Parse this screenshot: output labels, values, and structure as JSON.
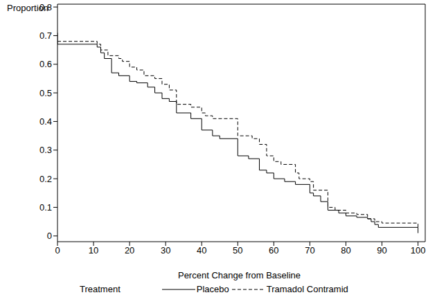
{
  "chart_data": {
    "type": "line",
    "title": "",
    "x_label": "Percent Change from Baseline",
    "y_label": "Proportion",
    "legend_title": "Treatment",
    "legend": "bottom",
    "xlim": [
      0,
      102
    ],
    "xticks": [
      0,
      10,
      20,
      30,
      40,
      50,
      60,
      70,
      80,
      90,
      100
    ],
    "ylim": [
      -0.02,
      0.81
    ],
    "yticks": [
      0,
      0.1,
      0.2,
      0.3,
      0.4,
      0.5,
      0.6,
      0.7,
      0.8
    ],
    "grid": false,
    "series": [
      {
        "name": "Placebo",
        "color": "#000000",
        "line_style": "solid",
        "x": [
          0,
          0,
          10,
          11,
          12,
          13,
          15,
          17,
          20,
          22,
          25,
          27,
          29,
          31,
          33,
          37,
          40,
          43,
          45,
          50,
          53,
          56,
          58,
          60,
          63,
          66,
          70,
          71,
          73,
          75,
          78,
          80,
          83,
          86,
          87,
          88,
          89,
          100,
          100
        ],
        "values": [
          0.71,
          0.67,
          0.67,
          0.66,
          0.64,
          0.62,
          0.57,
          0.56,
          0.54,
          0.535,
          0.52,
          0.5,
          0.48,
          0.47,
          0.43,
          0.41,
          0.37,
          0.35,
          0.34,
          0.28,
          0.27,
          0.23,
          0.22,
          0.2,
          0.19,
          0.18,
          0.15,
          0.14,
          0.12,
          0.09,
          0.08,
          0.07,
          0.065,
          0.06,
          0.05,
          0.04,
          0.03,
          0.03,
          0.01
        ]
      },
      {
        "name": "Tramadol Contramid",
        "color": "#000000",
        "line_style": "dashed",
        "x": [
          0,
          10,
          11,
          12,
          14,
          17,
          18,
          20,
          22,
          24,
          27,
          29,
          31,
          33,
          37,
          40,
          41,
          43,
          50,
          54,
          56,
          58,
          60,
          62,
          66,
          67,
          70,
          71,
          75,
          77,
          80,
          83,
          86,
          88,
          90,
          100,
          100
        ],
        "values": [
          0.68,
          0.68,
          0.67,
          0.65,
          0.63,
          0.62,
          0.61,
          0.59,
          0.58,
          0.56,
          0.55,
          0.53,
          0.51,
          0.46,
          0.45,
          0.43,
          0.42,
          0.41,
          0.35,
          0.34,
          0.32,
          0.28,
          0.26,
          0.25,
          0.22,
          0.2,
          0.19,
          0.16,
          0.1,
          0.09,
          0.08,
          0.075,
          0.06,
          0.05,
          0.045,
          0.045,
          0.03
        ]
      }
    ]
  }
}
